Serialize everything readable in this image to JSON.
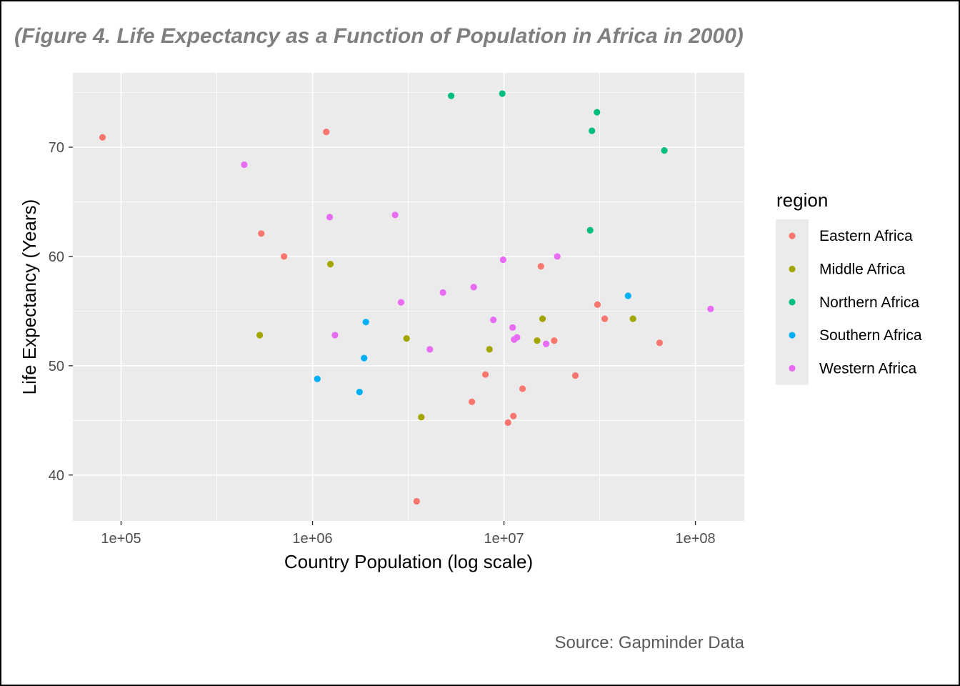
{
  "title": "(Figure 4. Life Expectancy as a Function of Population in Africa in 2000)",
  "caption": "Source: Gapminder Data",
  "colors": {
    "panel": "#ebebeb",
    "grid_major": "#ffffff",
    "Eastern Africa": "#F8766D",
    "Middle Africa": "#A3A500",
    "Northern Africa": "#00BF7D",
    "Southern Africa": "#00B0F6",
    "Western Africa": "#E76BF3"
  },
  "chart_data": {
    "type": "scatter",
    "title": "(Figure 4. Life Expectancy as a Function of Population in Africa in 2000)",
    "xlabel": "Country Population (log scale)",
    "ylabel": "Life Expectancy (Years)",
    "x_scale": "log10",
    "xlim": [
      56000,
      180000000
    ],
    "ylim": [
      35.8,
      76.8
    ],
    "x_ticks": [
      {
        "value": 100000,
        "label": "1e+05"
      },
      {
        "value": 1000000,
        "label": "1e+06"
      },
      {
        "value": 10000000,
        "label": "1e+07"
      },
      {
        "value": 100000000,
        "label": "1e+08"
      }
    ],
    "y_ticks": [
      {
        "value": 40,
        "label": "40"
      },
      {
        "value": 50,
        "label": "50"
      },
      {
        "value": 60,
        "label": "60"
      },
      {
        "value": 70,
        "label": "70"
      }
    ],
    "legend_title": "region",
    "legend_position": "right",
    "grid": true,
    "series": [
      {
        "name": "Eastern Africa",
        "points": [
          {
            "x": 80000,
            "y": 70.9
          },
          {
            "x": 1180000,
            "y": 71.4
          },
          {
            "x": 540000,
            "y": 62.1
          },
          {
            "x": 710000,
            "y": 60.0
          },
          {
            "x": 15600000,
            "y": 59.1
          },
          {
            "x": 30800000,
            "y": 55.6
          },
          {
            "x": 33600000,
            "y": 54.3
          },
          {
            "x": 18300000,
            "y": 52.3
          },
          {
            "x": 65000000,
            "y": 52.1
          },
          {
            "x": 8000000,
            "y": 49.2
          },
          {
            "x": 23600000,
            "y": 49.1
          },
          {
            "x": 12500000,
            "y": 47.9
          },
          {
            "x": 6800000,
            "y": 46.7
          },
          {
            "x": 11200000,
            "y": 45.4
          },
          {
            "x": 10500000,
            "y": 44.8
          },
          {
            "x": 3500000,
            "y": 37.6
          }
        ]
      },
      {
        "name": "Middle Africa",
        "points": [
          {
            "x": 1240000,
            "y": 59.3
          },
          {
            "x": 530000,
            "y": 52.8
          },
          {
            "x": 3100000,
            "y": 52.5
          },
          {
            "x": 15900000,
            "y": 54.3
          },
          {
            "x": 47200000,
            "y": 54.3
          },
          {
            "x": 14900000,
            "y": 52.3
          },
          {
            "x": 8400000,
            "y": 51.5
          },
          {
            "x": 3700000,
            "y": 45.3
          }
        ]
      },
      {
        "name": "Northern Africa",
        "points": [
          {
            "x": 5300000,
            "y": 74.7
          },
          {
            "x": 9800000,
            "y": 74.9
          },
          {
            "x": 30600000,
            "y": 73.2
          },
          {
            "x": 28800000,
            "y": 71.5
          },
          {
            "x": 68800000,
            "y": 69.7
          },
          {
            "x": 28200000,
            "y": 62.4
          }
        ]
      },
      {
        "name": "Southern Africa",
        "points": [
          {
            "x": 44500000,
            "y": 56.4
          },
          {
            "x": 1900000,
            "y": 54.0
          },
          {
            "x": 1860000,
            "y": 50.7
          },
          {
            "x": 1060000,
            "y": 48.8
          },
          {
            "x": 1760000,
            "y": 47.6
          }
        ]
      },
      {
        "name": "Western Africa",
        "points": [
          {
            "x": 440000,
            "y": 68.4
          },
          {
            "x": 1230000,
            "y": 63.6
          },
          {
            "x": 2700000,
            "y": 63.8
          },
          {
            "x": 9900000,
            "y": 59.7
          },
          {
            "x": 19000000,
            "y": 60.0
          },
          {
            "x": 6950000,
            "y": 57.2
          },
          {
            "x": 4800000,
            "y": 56.7
          },
          {
            "x": 2900000,
            "y": 55.8
          },
          {
            "x": 8800000,
            "y": 54.2
          },
          {
            "x": 11100000,
            "y": 53.5
          },
          {
            "x": 11700000,
            "y": 52.6
          },
          {
            "x": 11300000,
            "y": 52.4
          },
          {
            "x": 16600000,
            "y": 52.0
          },
          {
            "x": 1310000,
            "y": 52.8
          },
          {
            "x": 4100000,
            "y": 51.5
          },
          {
            "x": 120000000,
            "y": 55.2
          }
        ]
      }
    ]
  }
}
